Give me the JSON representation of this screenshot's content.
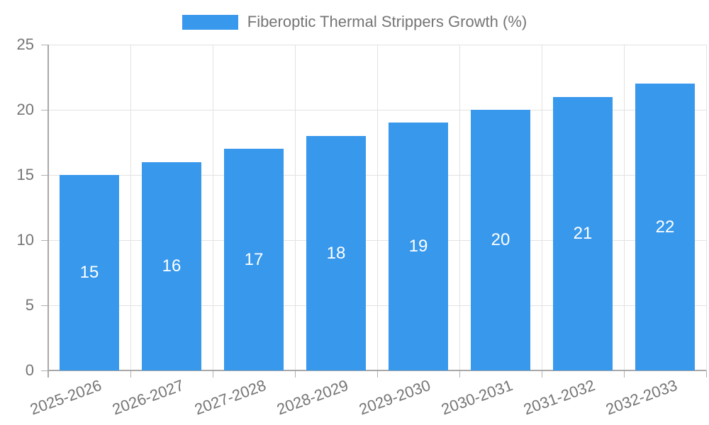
{
  "chart_data": {
    "type": "bar",
    "title": "",
    "legend": {
      "label": "Fiberoptic Thermal Strippers Growth (%)",
      "position": "top"
    },
    "categories": [
      "2025-2026",
      "2026-2027",
      "2027-2028",
      "2028-2029",
      "2029-2030",
      "2030-2031",
      "2031-2032",
      "2032-2033"
    ],
    "values": [
      15,
      16,
      17,
      18,
      19,
      20,
      21,
      22
    ],
    "xlabel": "",
    "ylabel": "",
    "ylim": [
      0,
      25
    ],
    "yticks": [
      0,
      5,
      10,
      15,
      20,
      25
    ],
    "grid": true,
    "colors": {
      "bar": "#3898ec",
      "value_label": "#ffffff",
      "axis_text": "#757575",
      "grid_line": "#e2e2e2",
      "axis_line": "#a8a8a8",
      "tick_line": "#b0b0b0",
      "background": "#ffffff"
    }
  }
}
